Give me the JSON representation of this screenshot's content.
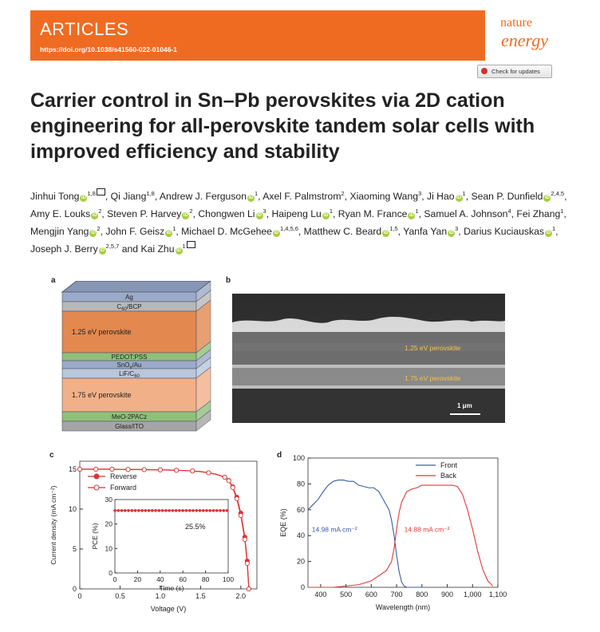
{
  "header": {
    "section_label": "ARTICLES",
    "doi": "https://doi.org/10.1038/s41560-022-01046-1",
    "journal_line1": "nature",
    "journal_line2": "energy",
    "check_updates": "Check for updates",
    "colors": {
      "banner": "#f06b22"
    }
  },
  "article": {
    "title": "Carrier control in Sn–Pb perovskites via 2D cation engineering for all-perovskite tandem solar cells with improved efficiency and stability",
    "authors": [
      {
        "name": "Jinhui Tong",
        "orcid": true,
        "sup": "1,8",
        "corresponding": true
      },
      {
        "name": "Qi Jiang",
        "orcid": false,
        "sup": "1,8"
      },
      {
        "name": "Andrew J. Ferguson",
        "orcid": true,
        "sup": "1"
      },
      {
        "name": "Axel F. Palmstrom",
        "orcid": false,
        "sup": "2"
      },
      {
        "name": "Xiaoming Wang",
        "orcid": false,
        "sup": "3"
      },
      {
        "name": "Ji Hao",
        "orcid": true,
        "sup": "1"
      },
      {
        "name": "Sean P. Dunfield",
        "orcid": true,
        "sup": "2,4,5"
      },
      {
        "name": "Amy E. Louks",
        "orcid": true,
        "sup": "2"
      },
      {
        "name": "Steven P. Harvey",
        "orcid": true,
        "sup": "2"
      },
      {
        "name": "Chongwen Li",
        "orcid": true,
        "sup": "3"
      },
      {
        "name": "Haipeng Lu",
        "orcid": true,
        "sup": "1"
      },
      {
        "name": "Ryan M. France",
        "orcid": true,
        "sup": "1"
      },
      {
        "name": "Samuel A. Johnson",
        "orcid": false,
        "sup": "4"
      },
      {
        "name": "Fei Zhang",
        "orcid": false,
        "sup": "1"
      },
      {
        "name": "Mengjin Yang",
        "orcid": true,
        "sup": "2"
      },
      {
        "name": "John F. Geisz",
        "orcid": true,
        "sup": "1"
      },
      {
        "name": "Michael D. McGehee",
        "orcid": true,
        "sup": "1,4,5,6"
      },
      {
        "name": "Matthew C. Beard",
        "orcid": true,
        "sup": "1,5"
      },
      {
        "name": "Yanfa Yan",
        "orcid": true,
        "sup": "3"
      },
      {
        "name": "Darius Kuciauskas",
        "orcid": true,
        "sup": "1"
      },
      {
        "name": "Joseph J. Berry",
        "orcid": true,
        "sup": "2,5,7"
      },
      {
        "name": "Kai Zhu",
        "orcid": true,
        "sup": "1",
        "corresponding": true,
        "prefix": "and "
      }
    ]
  },
  "figure": {
    "panel_labels": [
      "a",
      "b",
      "c",
      "d"
    ],
    "device_stack": {
      "layers": [
        {
          "label": "Ag",
          "color": "#9aaac8"
        },
        {
          "label": "C60/BCP",
          "color": "#b8b8b8"
        },
        {
          "label": "1.25 eV perovskite",
          "color": "#e3884e"
        },
        {
          "label": "PEDOT:PSS",
          "color": "#8fc07a"
        },
        {
          "label": "SnOx/Au",
          "color": "#9aaac8"
        },
        {
          "label": "LiF/C60",
          "color": "#b9c7dc"
        },
        {
          "label": "1.75 eV perovskite",
          "color": "#f2b088"
        },
        {
          "label": "MeO-2PACz",
          "color": "#8fc07a"
        },
        {
          "label": "Glass/ITO",
          "color": "#a5a5a5"
        }
      ]
    },
    "sem": {
      "labels": [
        "1.25 eV  perovskite",
        "1.75 eV  perovskite"
      ],
      "scale_bar": "1 μm",
      "label_color": "#f3c24e"
    }
  },
  "chart_data": [
    {
      "type": "line",
      "panel": "c",
      "xlabel": "Voltage (V)",
      "ylabel": "Current density (mA cm⁻²)",
      "xlim": [
        0,
        2.2
      ],
      "ylim": [
        0,
        16
      ],
      "xticks": [
        0,
        0.5,
        1.0,
        1.5,
        2.0
      ],
      "xtick_labels": [
        "0",
        "0.5",
        "1.0",
        "1.5",
        "2.0"
      ],
      "yticks": [
        0,
        5,
        10,
        15
      ],
      "series": [
        {
          "name": "Reverse",
          "color": "#d93636",
          "marker": "filled",
          "x": [
            0,
            0.1,
            0.2,
            0.3,
            0.4,
            0.5,
            0.6,
            0.7,
            0.8,
            0.9,
            1.0,
            1.1,
            1.2,
            1.3,
            1.4,
            1.5,
            1.6,
            1.7,
            1.8,
            1.85,
            1.9,
            1.95,
            2.0,
            2.05,
            2.08,
            2.1
          ],
          "y": [
            15.0,
            15.0,
            15.0,
            15.0,
            15.0,
            14.98,
            14.97,
            14.96,
            14.95,
            14.94,
            14.92,
            14.9,
            14.87,
            14.83,
            14.78,
            14.7,
            14.55,
            14.35,
            14.0,
            13.6,
            12.8,
            11.5,
            9.5,
            6.5,
            3.5,
            0
          ]
        },
        {
          "name": "Forward",
          "color": "#d93636",
          "marker": "open",
          "x": [
            0,
            0.1,
            0.2,
            0.3,
            0.4,
            0.5,
            0.6,
            0.7,
            0.8,
            0.9,
            1.0,
            1.1,
            1.2,
            1.3,
            1.4,
            1.5,
            1.6,
            1.7,
            1.8,
            1.85,
            1.9,
            1.95,
            2.0,
            2.05,
            2.08,
            2.1
          ],
          "y": [
            15.0,
            15.0,
            15.0,
            15.0,
            15.0,
            14.98,
            14.97,
            14.96,
            14.95,
            14.94,
            14.92,
            14.9,
            14.87,
            14.83,
            14.78,
            14.7,
            14.55,
            14.35,
            14.0,
            13.55,
            12.7,
            11.3,
            9.2,
            6.2,
            3.2,
            0
          ]
        }
      ],
      "inset": {
        "type": "scatter",
        "xlabel": "Time (s)",
        "ylabel": "PCE (%)",
        "xlim": [
          0,
          100
        ],
        "ylim": [
          0,
          30
        ],
        "xticks": [
          0,
          20,
          40,
          60,
          80,
          100
        ],
        "yticks": [
          0,
          10,
          20,
          30
        ],
        "annotation": "25.5%",
        "series": [
          {
            "x": [
              0,
              3,
              6,
              9,
              12,
              15,
              18,
              21,
              24,
              27,
              30,
              33,
              36,
              39,
              42,
              45,
              48,
              51,
              54,
              57,
              60,
              63,
              66,
              69,
              72,
              75,
              78,
              81,
              84,
              87,
              90,
              93,
              96,
              99
            ],
            "y": [
              25.5,
              25.5,
              25.5,
              25.5,
              25.5,
              25.5,
              25.5,
              25.5,
              25.5,
              25.5,
              25.5,
              25.5,
              25.5,
              25.5,
              25.5,
              25.5,
              25.5,
              25.5,
              25.5,
              25.5,
              25.5,
              25.5,
              25.5,
              25.5,
              25.5,
              25.5,
              25.5,
              25.5,
              25.5,
              25.5,
              25.5,
              25.5,
              25.5,
              25.5
            ],
            "color": "#d93636"
          }
        ]
      },
      "legend": "top-left"
    },
    {
      "type": "line",
      "panel": "d",
      "xlabel": "Wavelength (nm)",
      "ylabel": "EQE (%)",
      "xlim": [
        350,
        1100
      ],
      "ylim": [
        0,
        100
      ],
      "xticks": [
        400,
        500,
        600,
        700,
        800,
        900,
        1000,
        1100
      ],
      "xtick_labels": [
        "400",
        "500",
        "600",
        "700",
        "800",
        "900",
        "1,000",
        "1,100"
      ],
      "yticks": [
        0,
        20,
        40,
        60,
        80,
        100
      ],
      "legend": "top-right",
      "series": [
        {
          "name": "Front",
          "color": "#3d5aa8",
          "annotation": "14.98 mA cm⁻²",
          "x": [
            350,
            370,
            390,
            410,
            430,
            450,
            470,
            490,
            510,
            530,
            550,
            570,
            590,
            610,
            630,
            650,
            670,
            680,
            690,
            700,
            710,
            720,
            730,
            740,
            760,
            800
          ],
          "y": [
            60,
            64,
            68,
            74,
            79,
            82,
            83,
            83,
            82,
            82,
            79,
            78,
            77,
            77,
            74,
            67,
            60,
            52,
            40,
            25,
            12,
            4,
            1,
            0,
            0,
            0
          ]
        },
        {
          "name": "Back",
          "color": "#e03a3a",
          "annotation": "14.88 mA cm⁻²",
          "x": [
            350,
            400,
            450,
            500,
            550,
            600,
            630,
            660,
            680,
            690,
            700,
            710,
            720,
            740,
            760,
            780,
            800,
            830,
            860,
            890,
            920,
            940,
            960,
            980,
            1000,
            1020,
            1040,
            1060,
            1080
          ],
          "y": [
            0,
            0,
            0,
            1,
            2,
            5,
            9,
            13,
            20,
            30,
            45,
            58,
            66,
            74,
            76,
            77,
            79,
            79,
            79,
            79,
            79,
            78,
            72,
            60,
            45,
            28,
            14,
            5,
            1
          ]
        }
      ]
    }
  ]
}
